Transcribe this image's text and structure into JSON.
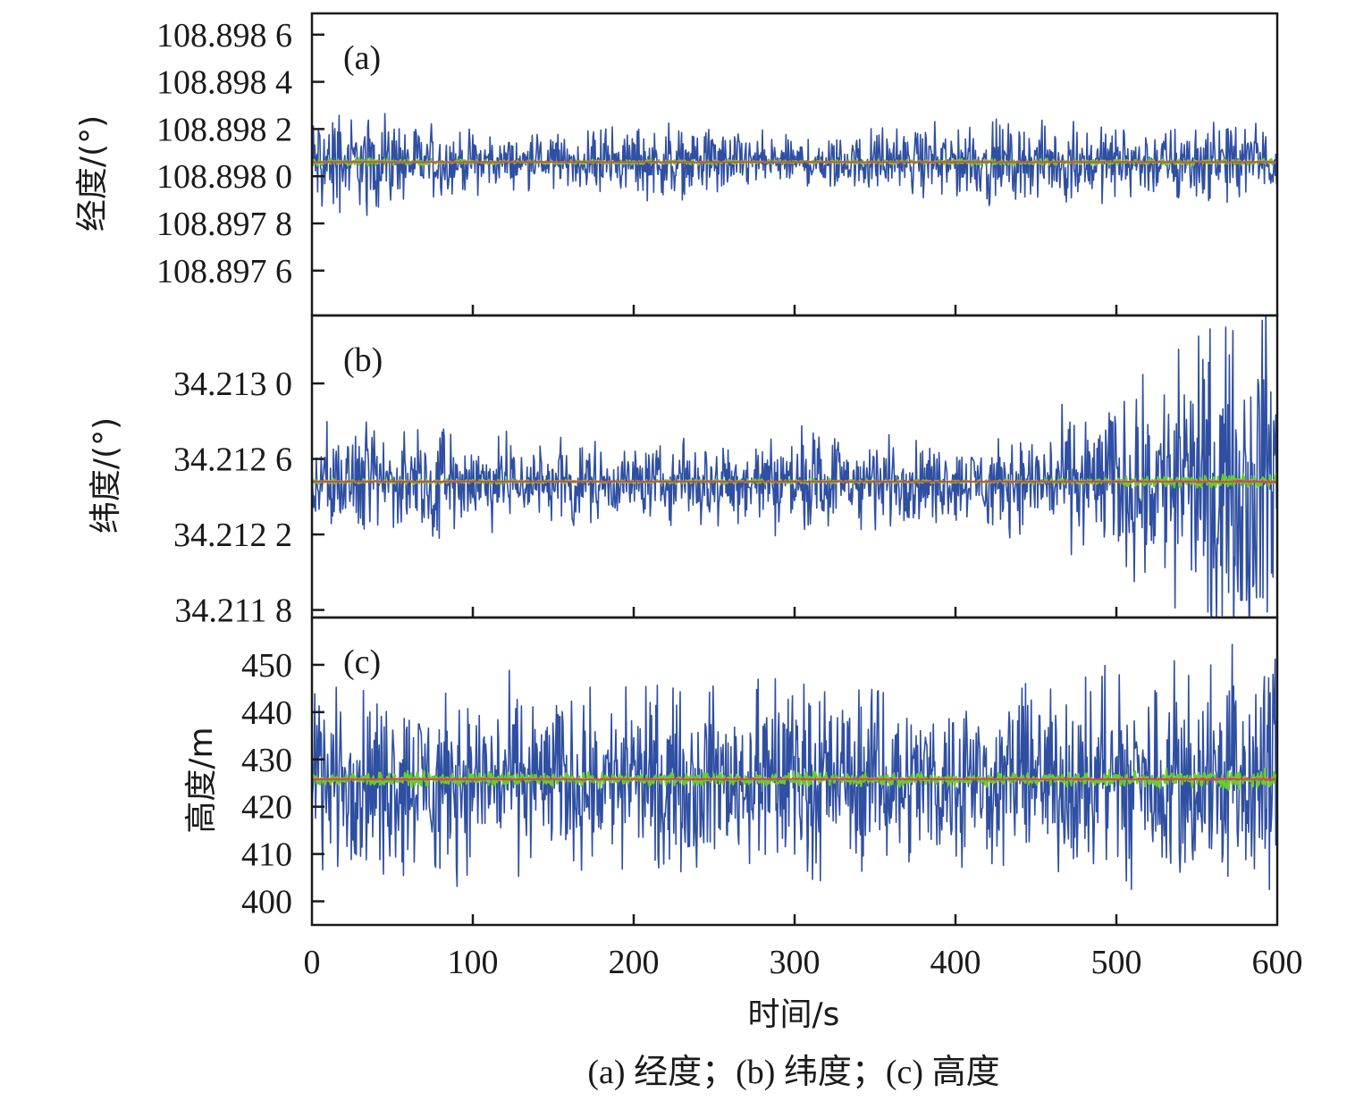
{
  "chart_data": [
    {
      "type": "line",
      "panel_label": "(a)",
      "ylabel": "经度/(°)",
      "xlim": [
        0,
        600
      ],
      "ylim": [
        108.89741,
        108.89869
      ],
      "yticks": [
        108.8976,
        108.8978,
        108.898,
        108.8982,
        108.8984,
        108.8986
      ],
      "ytick_labels": [
        "108.897 6",
        "108.897 8",
        "108.898 0",
        "108.898 2",
        "108.898 4",
        "108.898 6"
      ],
      "center": 108.89806,
      "noise_envelope": {
        "x": [
          0,
          30,
          60,
          100,
          130,
          170,
          210,
          250,
          290,
          310,
          350,
          400,
          450,
          500,
          550,
          600
        ],
        "amplitude": [
          0.00018,
          0.00016,
          0.000135,
          0.0001,
          8e-05,
          9e-05,
          0.000125,
          0.000115,
          9e-05,
          8e-05,
          0.0001,
          0.000125,
          0.00013,
          0.000125,
          0.00013,
          0.000125
        ]
      },
      "series": [
        {
          "color": "#2f4fa2",
          "spread": 1.0
        },
        {
          "color": "#66cc33",
          "spread": 0.08
        },
        {
          "color": "#d44",
          "spread": 0.01
        }
      ]
    },
    {
      "type": "line",
      "panel_label": "(b)",
      "ylabel": "纬度/(°)",
      "xlim": [
        0,
        600
      ],
      "ylim": [
        34.21176,
        34.21336
      ],
      "yticks": [
        34.2118,
        34.2122,
        34.2126,
        34.213
      ],
      "ytick_labels": [
        "34.211 8",
        "34.212 2",
        "34.212 6",
        "34.213 0"
      ],
      "center": 34.21248,
      "noise_envelope": {
        "x": [
          0,
          50,
          100,
          150,
          200,
          250,
          300,
          350,
          400,
          450,
          500,
          550,
          600
        ],
        "amplitude": [
          0.00022,
          0.00022,
          0.0002,
          0.00017,
          0.00015,
          0.00018,
          0.00021,
          0.0002,
          0.00015,
          0.00022,
          0.00035,
          0.00055,
          0.0007
        ]
      },
      "series": [
        {
          "color": "#2f4fa2",
          "spread": 1.0
        },
        {
          "color": "#66cc33",
          "spread": 0.05
        },
        {
          "color": "#d44",
          "spread": 0.008
        }
      ]
    },
    {
      "type": "line",
      "panel_label": "(c)",
      "ylabel": "高度/m",
      "xlabel": "时间/s",
      "xlim": [
        0,
        600
      ],
      "ylim": [
        395,
        460
      ],
      "yticks": [
        400,
        410,
        420,
        430,
        440,
        450
      ],
      "ytick_labels": [
        "400",
        "410",
        "420",
        "430",
        "440",
        "450"
      ],
      "xticks": [
        0,
        100,
        200,
        300,
        400,
        500,
        600
      ],
      "xtick_labels": [
        "0",
        "100",
        "200",
        "300",
        "400",
        "500",
        "600"
      ],
      "center": 425.8,
      "noise_envelope": {
        "x": [
          0,
          100,
          200,
          300,
          400,
          500,
          550,
          600
        ],
        "amplitude": [
          15,
          15,
          14,
          15,
          14,
          16,
          19,
          22
        ]
      },
      "series": [
        {
          "color": "#2f4fa2",
          "spread": 1.0
        },
        {
          "color": "#66cc33",
          "spread": 0.08
        },
        {
          "color": "#d44",
          "spread": 0.01
        }
      ]
    }
  ],
  "caption": "(a) 经度；(b) 纬度；(c) 高度"
}
